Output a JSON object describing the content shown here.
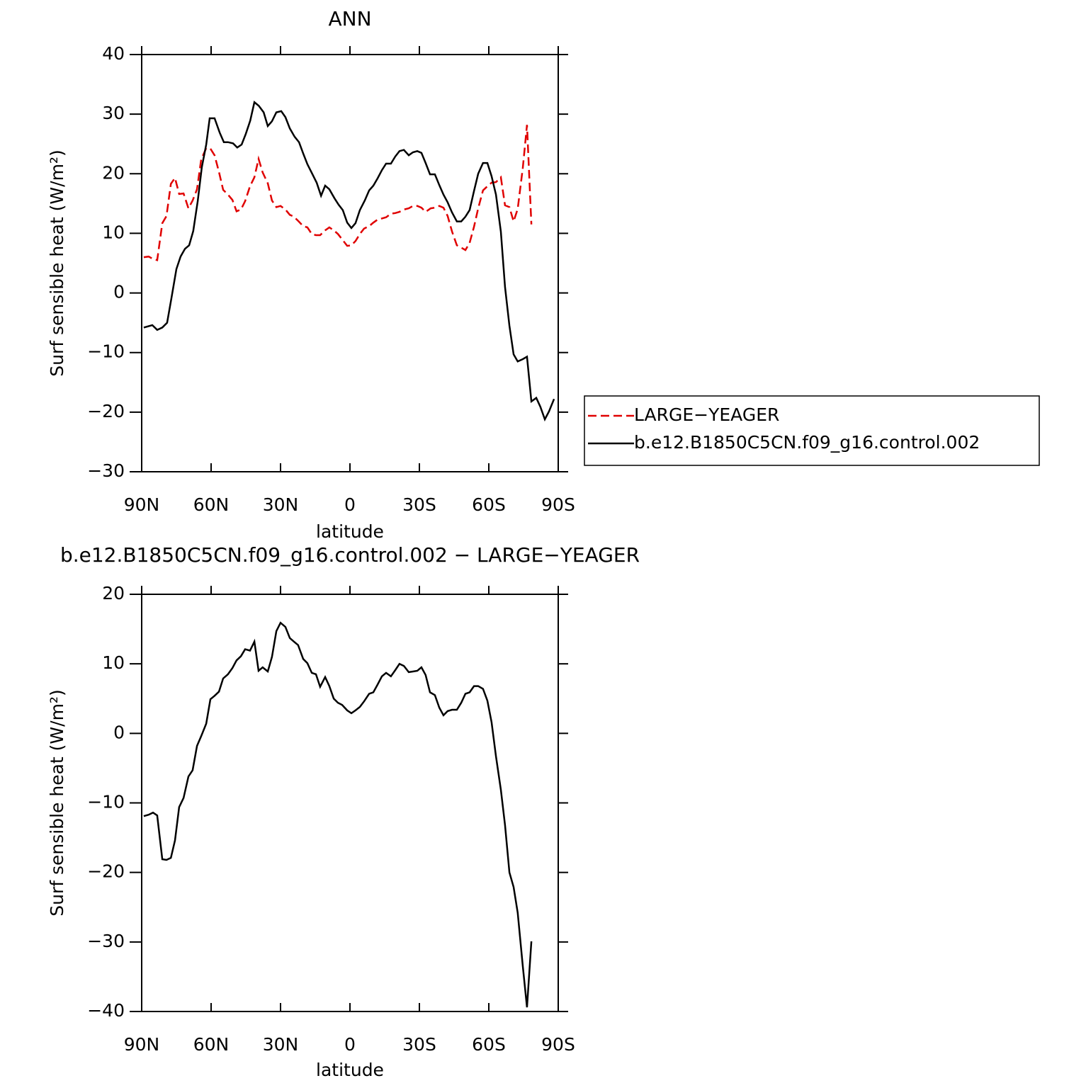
{
  "chart_data": [
    {
      "type": "line",
      "title": "ANN",
      "xlabel": "latitude",
      "ylabel": "Surf sensible heat (W/m²)",
      "xlim": [
        90,
        -90
      ],
      "xticks": [
        {
          "value": 90,
          "label": "90N"
        },
        {
          "value": 60,
          "label": "60N"
        },
        {
          "value": 30,
          "label": "30N"
        },
        0,
        {
          "value": -30,
          "label": "30S"
        },
        {
          "value": -60,
          "label": "60S"
        },
        {
          "value": -90,
          "label": "90S"
        }
      ],
      "ylim": [
        -30,
        40
      ],
      "yticks": [
        {
          "value": -30,
          "label": "−30"
        },
        {
          "value": -20,
          "label": "−20"
        },
        {
          "value": -10,
          "label": "−10"
        },
        0,
        10,
        20,
        30,
        40
      ],
      "legend": "right",
      "series": [
        {
          "name": "LARGE−YEAGER",
          "color": "#e00000",
          "line_style": "dashed",
          "x": [
            89.1,
            87,
            85.1,
            83.3,
            81.1,
            79.3,
            77.4,
            75.6,
            73.8,
            71.9,
            69.8,
            68,
            66.1,
            64.3,
            62.1,
            60.3,
            58.5,
            56.6,
            54.8,
            52.7,
            50.8,
            49,
            47.1,
            45.3,
            43.2,
            41.3,
            39.5,
            37.7,
            35.5,
            33.7,
            31.8,
            30,
            27.9,
            26,
            24.2,
            22.4,
            20.2,
            18.4,
            16.5,
            14.7,
            12.9,
            10.7,
            8.9,
            7,
            5.2,
            3.4,
            1.2,
            -0.6,
            -2.4,
            -4.3,
            -6.1,
            -8.3,
            -10.1,
            -11.9,
            -13.8,
            -15.6,
            -17.7,
            -19.6,
            -21.4,
            -23.3,
            -25.4,
            -27.2,
            -29.1,
            -30.9,
            -32.7,
            -34.9,
            -36.7,
            -38.6,
            -40.4,
            -42.2,
            -44.1,
            -46.2,
            -48.1,
            -49.9,
            -51.7,
            -53.6,
            -55.4,
            -57.5,
            -59.4,
            -61.2,
            -63.1,
            -65.2,
            -67,
            -68.9,
            -70.7,
            -72.5,
            -74.7,
            -76.5,
            -78.4
          ],
          "values": [
            6,
            6.1,
            5.7,
            5.5,
            11.7,
            12.9,
            18.3,
            19.3,
            16.6,
            16.7,
            14.2,
            15.5,
            17.4,
            22.4,
            24.3,
            24.2,
            23.1,
            20.3,
            17.3,
            16.5,
            15.6,
            13.7,
            14,
            15.4,
            17.9,
            19.4,
            22.5,
            20.2,
            18.4,
            15.5,
            14.4,
            14.6,
            14,
            13.1,
            12.8,
            12.1,
            11.2,
            11,
            9.9,
            9.7,
            9.7,
            10.5,
            11,
            10.5,
            9.9,
            9,
            7.9,
            8,
            8.7,
            9.9,
            10.8,
            11.2,
            11.8,
            12.3,
            12.5,
            12.7,
            13.3,
            13.4,
            13.6,
            14,
            14.2,
            14.6,
            14.6,
            14.3,
            13.6,
            14.2,
            14.3,
            14.6,
            14.3,
            12.9,
            10.3,
            8,
            7.6,
            7.2,
            8.4,
            11.1,
            14.2,
            17.2,
            17.9,
            18.5,
            18.6,
            19.4,
            14.7,
            14.4,
            12,
            14.1,
            21,
            28.2,
            11.5
          ]
        },
        {
          "name": "b.e12.B1850C5CN.f09_g16.control.002",
          "color": "#000000",
          "line_style": "solid",
          "x": [
            89.1,
            85.4,
            83.3,
            81.1,
            79,
            77.1,
            75,
            73.2,
            71.3,
            69.5,
            67.7,
            65.8,
            64,
            62.1,
            60.6,
            58.5,
            56.3,
            54.5,
            52.7,
            50.5,
            48.7,
            46.8,
            45,
            43.1,
            41.3,
            39.4,
            37.3,
            35.5,
            33.7,
            31.8,
            29.7,
            27.9,
            26,
            23.9,
            22,
            20.2,
            18.4,
            16.2,
            14.4,
            12.5,
            10.7,
            8.9,
            6.7,
            4.9,
            3.1,
            1.2,
            -0.6,
            -2.4,
            -4.3,
            -6.4,
            -8.3,
            -10.1,
            -11.9,
            -13.8,
            -15.6,
            -17.7,
            -19.6,
            -21.4,
            -23.3,
            -25.4,
            -27.2,
            -29.1,
            -30.9,
            -32.7,
            -34.6,
            -36.7,
            -38.6,
            -40.4,
            -42.2,
            -44.1,
            -46.2,
            -48.1,
            -49.9,
            -51.7,
            -53.6,
            -55.4,
            -57.5,
            -59.4,
            -61.2,
            -63.1,
            -65.2,
            -67,
            -68.9,
            -70.7,
            -72.5,
            -74.7,
            -76.5,
            -78.4,
            -80.5,
            -82.3,
            -84.2,
            -86,
            -88.2
          ],
          "values": [
            -5.8,
            -5.4,
            -6.2,
            -5.8,
            -5,
            -0.8,
            4,
            6.1,
            7.4,
            8,
            10.4,
            15.4,
            21.1,
            24.9,
            29.3,
            29.3,
            26.9,
            25.3,
            25.3,
            25.1,
            24.4,
            24.9,
            26.7,
            28.9,
            32,
            31.4,
            30.3,
            28,
            28.8,
            30.3,
            30.5,
            29.5,
            27.6,
            26.2,
            25.3,
            23.4,
            21.6,
            19.9,
            18.5,
            16.3,
            18,
            17.4,
            15.9,
            14.8,
            13.9,
            11.8,
            10.9,
            11.7,
            13.9,
            15.5,
            17.2,
            18,
            19.2,
            20.6,
            21.7,
            21.7,
            22.9,
            23.8,
            24,
            23.1,
            23.6,
            23.8,
            23.5,
            21.8,
            19.9,
            19.9,
            18.1,
            16.5,
            15.2,
            13.5,
            12,
            12,
            12.8,
            13.9,
            17.1,
            20,
            21.8,
            21.8,
            19.6,
            16.5,
            10.3,
            1,
            -5.5,
            -10.3,
            -11.5,
            -11.1,
            -10.7,
            -18.2,
            -17.6,
            -19.1,
            -21.2,
            -19.9,
            -17.8
          ]
        }
      ]
    },
    {
      "type": "line",
      "title": "b.e12.B1850C5CN.f09_g16.control.002 − LARGE−YEAGER",
      "xlabel": "latitude",
      "ylabel": "Surf sensible heat (W/m²)",
      "xlim": [
        90,
        -90
      ],
      "xticks": [
        {
          "value": 90,
          "label": "90N"
        },
        {
          "value": 60,
          "label": "60N"
        },
        {
          "value": 30,
          "label": "30N"
        },
        0,
        {
          "value": -30,
          "label": "30S"
        },
        {
          "value": -60,
          "label": "60S"
        },
        {
          "value": -90,
          "label": "90S"
        }
      ],
      "ylim": [
        -40,
        20
      ],
      "yticks": [
        {
          "value": -40,
          "label": "−40"
        },
        {
          "value": -30,
          "label": "−30"
        },
        {
          "value": -20,
          "label": "−20"
        },
        {
          "value": -10,
          "label": "−10"
        },
        0,
        10,
        20
      ],
      "series": [
        {
          "color": "#000000",
          "line_style": "solid",
          "x": [
            89.1,
            87,
            85.1,
            83.3,
            81.1,
            79.3,
            77.4,
            75.6,
            73.8,
            71.9,
            69.8,
            68,
            66.1,
            64.3,
            62.1,
            60.3,
            58.5,
            56.6,
            54.8,
            52.7,
            50.8,
            49,
            47.1,
            45.3,
            43.2,
            41.3,
            39.5,
            37.7,
            35.5,
            33.7,
            31.8,
            30,
            27.9,
            26,
            24.2,
            22.4,
            20.2,
            18.4,
            16.5,
            14.7,
            12.9,
            10.7,
            8.9,
            7,
            5.2,
            3.4,
            1.2,
            -0.6,
            -2.4,
            -4.3,
            -6.1,
            -8.3,
            -10.1,
            -11.9,
            -13.8,
            -15.6,
            -17.7,
            -19.6,
            -21.4,
            -23.3,
            -25.4,
            -27.2,
            -29.1,
            -30.9,
            -32.7,
            -34.6,
            -36.7,
            -38.6,
            -40.4,
            -42.2,
            -44.1,
            -46.2,
            -48.1,
            -49.9,
            -51.7,
            -53.6,
            -55.4,
            -57.5,
            -59.4,
            -61.2,
            -63.1,
            -65.2,
            -67,
            -68.9,
            -70.7,
            -72.5,
            -74.7,
            -76.5,
            -78.4
          ],
          "values": [
            -11.9,
            -11.7,
            -11.4,
            -11.8,
            -18.1,
            -18.2,
            -17.9,
            -15.4,
            -10.6,
            -9.3,
            -6.2,
            -5.3,
            -1.8,
            -0.4,
            1.4,
            4.9,
            5.4,
            6,
            7.9,
            8.5,
            9.4,
            10.5,
            11.1,
            12.1,
            11.9,
            13.2,
            9,
            9.5,
            8.9,
            11,
            14.7,
            15.9,
            15.3,
            13.7,
            13.2,
            12.7,
            10.7,
            10.1,
            8.7,
            8.5,
            6.7,
            8.1,
            6.8,
            5,
            4.4,
            4.1,
            3.3,
            2.9,
            3.3,
            3.8,
            4.6,
            5.7,
            5.9,
            7,
            8.2,
            8.7,
            8.2,
            9.1,
            10,
            9.7,
            8.8,
            8.9,
            9,
            9.5,
            8.4,
            5.9,
            5.5,
            3.7,
            2.6,
            3.2,
            3.4,
            3.4,
            4.4,
            5.7,
            5.9,
            6.8,
            6.8,
            6.4,
            4.7,
            1.6,
            -3.3,
            -8.1,
            -13.2,
            -20,
            -22.1,
            -25.8,
            -33.5,
            -39.4,
            -29.9
          ]
        }
      ]
    }
  ]
}
